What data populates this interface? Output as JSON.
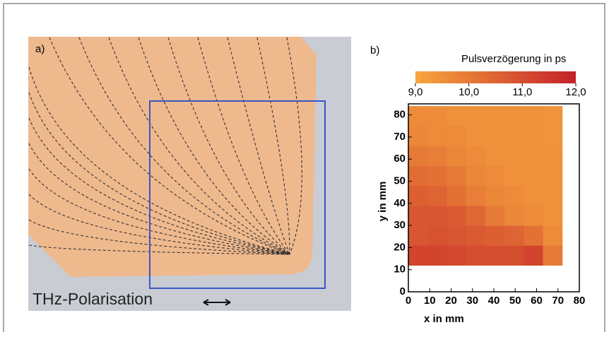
{
  "panel_a": {
    "label": "a)",
    "caption": "THz-Polarisation"
  },
  "chart_data": {
    "type": "heatmap",
    "panel_label": "b)",
    "xlabel": "x in mm",
    "ylabel": "y in mm",
    "x_edges": [
      0,
      9,
      18,
      27,
      36,
      45,
      54,
      63,
      72
    ],
    "y_edges": [
      12,
      21,
      30,
      39,
      48,
      57,
      66,
      75,
      84
    ],
    "values": [
      [
        11.2,
        11.2,
        11.1,
        11.0,
        11.0,
        11.0,
        11.2,
        10.0
      ],
      [
        10.8,
        10.9,
        10.8,
        10.7,
        10.6,
        10.5,
        10.2,
        9.6
      ],
      [
        10.8,
        10.8,
        10.7,
        10.4,
        10.0,
        9.7,
        9.6,
        9.5
      ],
      [
        10.6,
        10.5,
        10.2,
        9.9,
        9.7,
        9.6,
        9.5,
        9.5
      ],
      [
        10.3,
        10.2,
        10.0,
        9.7,
        9.6,
        9.5,
        9.5,
        9.5
      ],
      [
        10.0,
        9.9,
        9.7,
        9.6,
        9.5,
        9.5,
        9.5,
        9.5
      ],
      [
        9.7,
        9.6,
        9.6,
        9.5,
        9.5,
        9.5,
        9.5,
        9.4
      ],
      [
        9.6,
        9.6,
        9.5,
        9.5,
        9.5,
        9.5,
        9.5,
        9.4
      ]
    ],
    "xlim": [
      0,
      80
    ],
    "ylim": [
      0,
      85
    ],
    "xticks": [
      0,
      10,
      20,
      30,
      40,
      50,
      60,
      70,
      80
    ],
    "yticks": [
      0,
      10,
      20,
      30,
      40,
      50,
      60,
      70,
      80
    ],
    "colorbar": {
      "title": "Pulsverzögerung in ps",
      "lim": [
        9,
        12
      ],
      "ticks": [
        {
          "value": 9,
          "label": "9,0"
        },
        {
          "value": 10,
          "label": "10,0"
        },
        {
          "value": 11,
          "label": "11,0"
        },
        {
          "value": 12,
          "label": "12,0"
        }
      ],
      "colors": [
        "#f7a63e",
        "#c42128"
      ]
    }
  }
}
